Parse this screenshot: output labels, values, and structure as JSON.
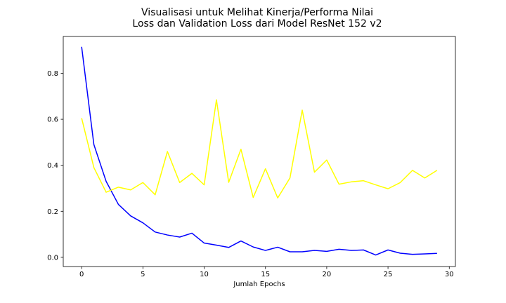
{
  "chart_data": {
    "type": "line",
    "title_lines": [
      "Visualisasi untuk Melihat Kinerja/Performa Nilai",
      "Loss dan Validation Loss dari Model ResNet 152 v2"
    ],
    "xlabel": "Jumlah Epochs",
    "ylabel": "",
    "xlim": [
      -1.5,
      30.5
    ],
    "ylim": [
      -0.04,
      0.96
    ],
    "xticks": [
      0,
      5,
      10,
      15,
      20,
      25,
      30
    ],
    "xtick_labels": [
      "0",
      "5",
      "10",
      "15",
      "20",
      "25",
      "30"
    ],
    "yticks": [
      0.0,
      0.2,
      0.4,
      0.6,
      0.8
    ],
    "ytick_labels": [
      "0.0",
      "0.2",
      "0.4",
      "0.6",
      "0.8"
    ],
    "grid": false,
    "legend": false,
    "x": [
      0,
      1,
      2,
      3,
      4,
      5,
      6,
      7,
      8,
      9,
      10,
      11,
      12,
      13,
      14,
      15,
      16,
      17,
      18,
      19,
      20,
      21,
      22,
      23,
      24,
      25,
      26,
      27,
      28,
      29
    ],
    "series": [
      {
        "color": "#0000ff",
        "values": [
          0.915,
          0.49,
          0.33,
          0.23,
          0.18,
          0.15,
          0.11,
          0.097,
          0.088,
          0.105,
          0.062,
          0.053,
          0.043,
          0.071,
          0.045,
          0.03,
          0.044,
          0.024,
          0.024,
          0.03,
          0.026,
          0.035,
          0.03,
          0.032,
          0.01,
          0.032,
          0.018,
          0.013,
          0.015,
          0.017
        ]
      },
      {
        "color": "#ffff00",
        "values": [
          0.605,
          0.39,
          0.283,
          0.305,
          0.293,
          0.325,
          0.272,
          0.46,
          0.325,
          0.365,
          0.315,
          0.685,
          0.326,
          0.47,
          0.26,
          0.385,
          0.258,
          0.345,
          0.64,
          0.37,
          0.423,
          0.318,
          0.328,
          0.333,
          0.315,
          0.298,
          0.325,
          0.378,
          0.345,
          0.378
        ]
      }
    ]
  }
}
